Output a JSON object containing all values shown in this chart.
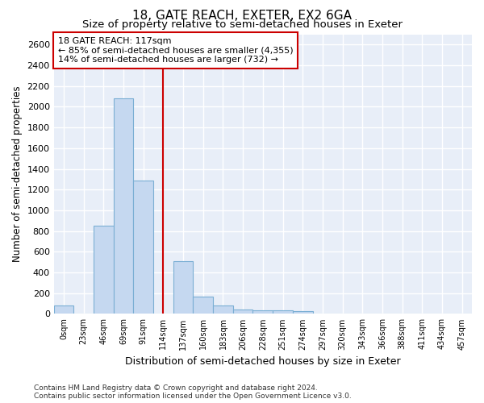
{
  "title": "18, GATE REACH, EXETER, EX2 6GA",
  "subtitle": "Size of property relative to semi-detached houses in Exeter",
  "xlabel": "Distribution of semi-detached houses by size in Exeter",
  "ylabel": "Number of semi-detached properties",
  "categories": [
    "0sqm",
    "23sqm",
    "46sqm",
    "69sqm",
    "91sqm",
    "114sqm",
    "137sqm",
    "160sqm",
    "183sqm",
    "206sqm",
    "228sqm",
    "251sqm",
    "274sqm",
    "297sqm",
    "320sqm",
    "343sqm",
    "366sqm",
    "388sqm",
    "411sqm",
    "434sqm",
    "457sqm"
  ],
  "bar_heights": [
    80,
    0,
    850,
    2080,
    1290,
    0,
    510,
    165,
    80,
    45,
    35,
    35,
    25,
    0,
    0,
    0,
    0,
    0,
    0,
    0,
    0
  ],
  "bar_color": "#c5d8f0",
  "bar_edge_color": "#7bafd4",
  "vline_x": 5,
  "vline_color": "#cc0000",
  "annotation_text_line1": "18 GATE REACH: 117sqm",
  "annotation_text_line2": "← 85% of semi-detached houses are smaller (4,355)",
  "annotation_text_line3": "14% of semi-detached houses are larger (732) →",
  "annotation_box_color": "white",
  "annotation_edge_color": "#cc0000",
  "ylim": [
    0,
    2700
  ],
  "yticks": [
    0,
    200,
    400,
    600,
    800,
    1000,
    1200,
    1400,
    1600,
    1800,
    2000,
    2200,
    2400,
    2600
  ],
  "title_fontsize": 11,
  "subtitle_fontsize": 9.5,
  "xlabel_fontsize": 9,
  "ylabel_fontsize": 8.5,
  "footer_text": "Contains HM Land Registry data © Crown copyright and database right 2024.\nContains public sector information licensed under the Open Government Licence v3.0.",
  "bg_color": "#e8eef8",
  "grid_color": "white"
}
